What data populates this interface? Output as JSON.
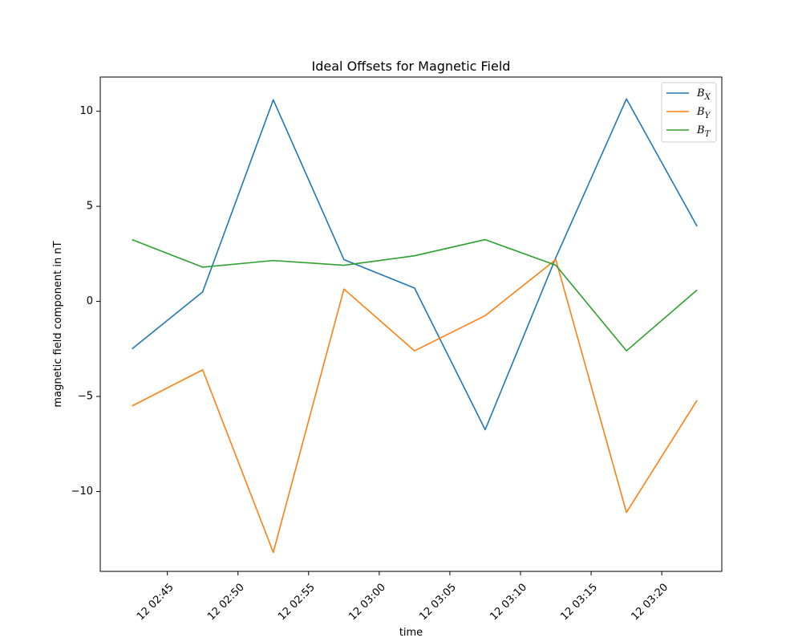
{
  "chart_data": {
    "type": "line",
    "title": "Ideal Offsets for Magnetic Field",
    "xlabel": "time",
    "ylabel": "magnetic field component in nT",
    "x": [
      "12 02:42:30",
      "12 02:47:30",
      "12 02:52:30",
      "12 02:57:30",
      "12 03:02:30",
      "12 03:07:30",
      "12 03:12:30",
      "12 03:17:30",
      "12 03:22:30"
    ],
    "xticks": [
      "12 02:45",
      "12 02:50",
      "12 02:55",
      "12 03:00",
      "12 03:05",
      "12 03:10",
      "12 03:15",
      "12 03:20"
    ],
    "yticks": [
      -10,
      -5,
      0,
      5,
      10
    ],
    "ylim": [
      -14.2,
      11.8
    ],
    "xlim": [
      "12 02:40:15",
      "12 03:24:15"
    ],
    "grid": false,
    "legend_position": "top-right",
    "series": [
      {
        "name": "B",
        "sub": "X",
        "color": "#1f77b4",
        "values": [
          -2.5,
          0.5,
          10.6,
          2.2,
          0.7,
          -6.75,
          2.3,
          10.65,
          3.95
        ]
      },
      {
        "name": "B",
        "sub": "Y",
        "color": "#ff7f0e",
        "values": [
          -5.5,
          -3.6,
          -13.2,
          0.65,
          -2.6,
          -0.75,
          2.2,
          -11.1,
          -5.2
        ]
      },
      {
        "name": "B",
        "sub": "T",
        "color": "#2ca02c",
        "values": [
          3.25,
          1.8,
          2.15,
          1.9,
          2.4,
          3.25,
          1.9,
          -2.6,
          0.6
        ]
      }
    ]
  }
}
